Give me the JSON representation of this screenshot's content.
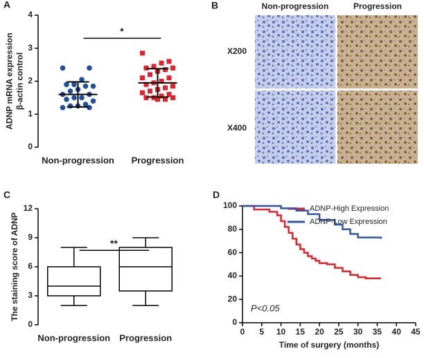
{
  "chart_data": [
    {
      "type": "scatter",
      "panel_label": "A",
      "ylabel": [
        "ADNP mRNA expression",
        "β-actin control"
      ],
      "categories": [
        "Non-progression",
        "Progression"
      ],
      "series": [
        {
          "name": "Non-progression",
          "color": "#1f4e9c",
          "marker": "circle",
          "values": [
            2.4,
            2.4,
            2.05,
            1.9,
            1.9,
            1.85,
            1.85,
            1.75,
            1.7,
            1.6,
            1.6,
            1.5,
            1.5,
            1.45,
            1.4,
            1.3,
            1.25,
            1.25,
            1.2,
            1.2
          ]
        },
        {
          "name": "Progression",
          "color": "#e0222c",
          "marker": "square",
          "values": [
            2.85,
            2.6,
            2.55,
            2.45,
            2.4,
            2.4,
            2.35,
            2.3,
            2.2,
            2.1,
            2.1,
            2.0,
            1.95,
            1.9,
            1.85,
            1.8,
            1.75,
            1.7,
            1.65,
            1.6,
            1.55,
            1.5,
            1.5,
            1.5,
            1.45,
            1.45
          ]
        }
      ],
      "mean": [
        1.6,
        1.95
      ],
      "sd": [
        0.38,
        0.43
      ],
      "significance": {
        "label": "*",
        "y": 3.3
      },
      "ylim": [
        0,
        4
      ],
      "yticks": [
        0,
        1,
        2,
        3,
        4
      ]
    },
    {
      "type": "box",
      "panel_label": "C",
      "ylabel": [
        "The staining score of ADNP"
      ],
      "categories": [
        "Non-progression",
        "Progression"
      ],
      "boxes": [
        {
          "min": 2,
          "q1": 3,
          "median": 4,
          "q3": 6,
          "max": 8
        },
        {
          "min": 2,
          "q1": 3.5,
          "median": 6,
          "q3": 8,
          "max": 9
        }
      ],
      "significance": {
        "label": "**",
        "y": 7.7
      },
      "ylim": [
        0,
        12
      ],
      "yticks": [
        0,
        3,
        6,
        9,
        12
      ]
    },
    {
      "type": "line",
      "panel_label": "D",
      "step": true,
      "xlabel": "Time of surgery (months)",
      "series": [
        {
          "name": "ADNP-High Expression",
          "color": "#e0222c",
          "x": [
            0,
            3,
            7,
            9,
            10,
            11,
            12,
            13,
            14,
            15,
            16,
            17,
            18,
            19,
            20,
            22,
            24,
            26,
            28,
            30,
            32,
            36
          ],
          "values": [
            100,
            97,
            95,
            92,
            87,
            82,
            77,
            72,
            67,
            63,
            60,
            57,
            55,
            53,
            51,
            50,
            47,
            44,
            41,
            39,
            38,
            38
          ]
        },
        {
          "name": "ADNP-Low Expression",
          "color": "#2f55a4",
          "x": [
            0,
            10,
            14,
            17,
            20,
            24,
            26,
            28,
            30,
            36
          ],
          "values": [
            100,
            98,
            96,
            93,
            88,
            84,
            80,
            76,
            73,
            72
          ]
        }
      ],
      "annotation": "P<0.05",
      "legend": "upper right",
      "xlim": [
        0,
        45
      ],
      "xticks": [
        0,
        5,
        10,
        15,
        20,
        25,
        30,
        35,
        40,
        45
      ],
      "ylim": [
        0,
        100
      ],
      "yticks": [
        0,
        20,
        40,
        60,
        80,
        100
      ]
    }
  ],
  "image_panel": {
    "panel_label": "B",
    "columns": [
      "Non-progression",
      "Progression"
    ],
    "rows": [
      "X200",
      "X400"
    ]
  }
}
